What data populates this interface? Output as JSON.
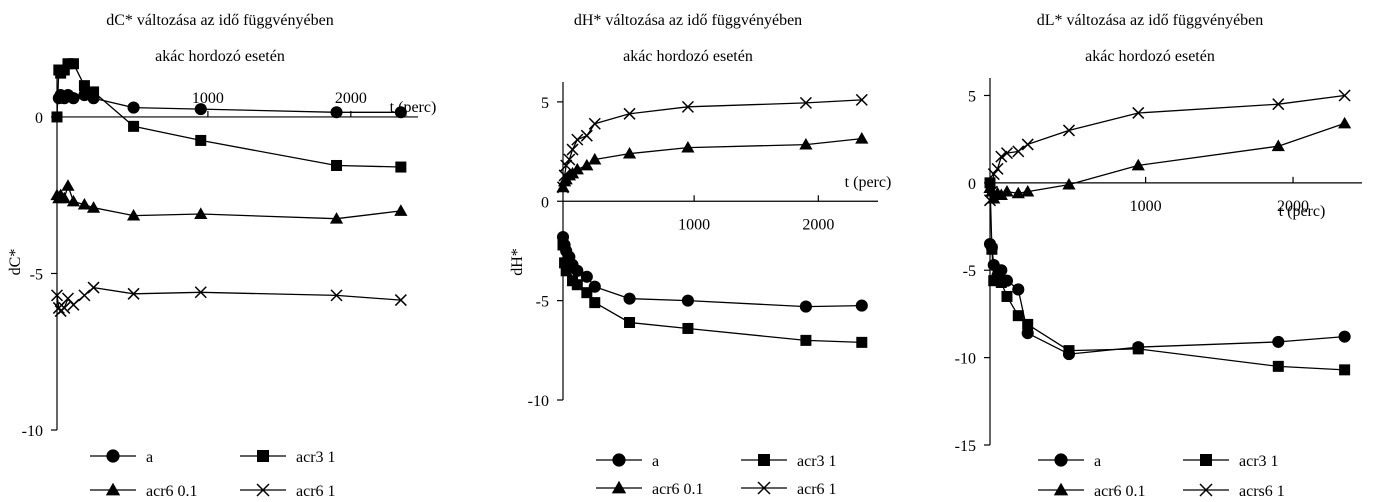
{
  "chart_data": [
    {
      "type": "line",
      "title": "dC* változása az idő függvényében",
      "subtitle": "akác hordozó esetén",
      "xlabel": "t (perc)",
      "ylabel": "dC*",
      "xlim": [
        0,
        2400
      ],
      "ylim": [
        -10,
        1.5
      ],
      "x_ticks": [
        1000,
        2000
      ],
      "y_ticks": [
        0,
        -5,
        -10
      ],
      "legend_position": "bottom",
      "series": [
        {
          "name": "a",
          "marker": "circle",
          "x": [
            10,
            20,
            40,
            60,
            90,
            150,
            200,
            480,
            950,
            1900,
            2350
          ],
          "y": [
            0.6,
            0.7,
            0.6,
            0.7,
            0.6,
            0.7,
            0.6,
            0.3,
            0.25,
            0.15,
            0.15
          ]
        },
        {
          "name": "acr3 1",
          "marker": "square",
          "x": [
            0,
            10,
            20,
            40,
            60,
            90,
            150,
            200,
            480,
            950,
            1900,
            2350
          ],
          "y": [
            0,
            1.5,
            1.4,
            1.5,
            1.7,
            1.7,
            1.0,
            0.8,
            -0.3,
            -0.75,
            -1.55,
            -1.6
          ]
        },
        {
          "name": "acr6 0.1",
          "marker": "triangle",
          "x": [
            0,
            10,
            20,
            40,
            60,
            90,
            150,
            200,
            480,
            950,
            1900,
            2350
          ],
          "y": [
            -2.5,
            -2.6,
            -2.5,
            -2.6,
            -2.2,
            -2.7,
            -2.8,
            -2.9,
            -3.15,
            -3.1,
            -3.25,
            -3.0
          ]
        },
        {
          "name": "acr6 1",
          "marker": "x",
          "x": [
            0,
            10,
            20,
            40,
            60,
            90,
            150,
            200,
            480,
            950,
            1900,
            2350
          ],
          "y": [
            -5.7,
            -6.1,
            -6.2,
            -6.1,
            -5.8,
            -6.0,
            -5.7,
            -5.45,
            -5.65,
            -5.6,
            -5.7,
            -5.85
          ]
        }
      ]
    },
    {
      "type": "line",
      "title": "dH* változása az idő függvényében",
      "subtitle": "akác hordozó esetén",
      "xlabel": "t (perc)",
      "ylabel": "dH*",
      "xlim": [
        0,
        2400
      ],
      "ylim": [
        -10,
        6
      ],
      "x_ticks": [
        1000,
        2000
      ],
      "y_ticks": [
        5,
        0,
        -5,
        -10
      ],
      "legend_position": "bottom",
      "series": [
        {
          "name": "a",
          "marker": "circle",
          "x": [
            0,
            10,
            20,
            40,
            60,
            90,
            150,
            200,
            480,
            950,
            1900,
            2350
          ],
          "y": [
            -1.8,
            -2.2,
            -2.5,
            -2.8,
            -3.2,
            -3.5,
            -3.8,
            -4.3,
            -4.9,
            -5.0,
            -5.3,
            -5.25
          ]
        },
        {
          "name": "acr3 1",
          "marker": "square",
          "x": [
            0,
            10,
            20,
            40,
            60,
            90,
            150,
            200,
            480,
            950,
            1900,
            2350
          ],
          "y": [
            -2.2,
            -3.1,
            -3.5,
            -3.3,
            -4.0,
            -4.2,
            -4.6,
            -5.1,
            -6.1,
            -6.4,
            -7.0,
            -7.1
          ]
        },
        {
          "name": "acr6 0.1",
          "marker": "triangle",
          "x": [
            0,
            10,
            20,
            40,
            60,
            90,
            150,
            200,
            480,
            950,
            1900,
            2350
          ],
          "y": [
            0.7,
            1.0,
            1.1,
            1.3,
            1.4,
            1.6,
            1.8,
            2.1,
            2.4,
            2.7,
            2.85,
            3.15
          ]
        },
        {
          "name": "acr6 1",
          "marker": "x",
          "x": [
            0,
            10,
            20,
            40,
            60,
            90,
            150,
            200,
            480,
            950,
            1900,
            2350
          ],
          "y": [
            0.7,
            1.3,
            1.8,
            2.1,
            2.6,
            3.1,
            3.3,
            3.9,
            4.4,
            4.75,
            4.95,
            5.1
          ]
        }
      ]
    },
    {
      "type": "line",
      "title": "dL* változása az idő függvényében",
      "subtitle": "akác hordozó esetén",
      "xlabel": "t (perc)",
      "ylabel": "",
      "xlim": [
        0,
        2400
      ],
      "ylim": [
        -15,
        6
      ],
      "x_ticks": [
        1000,
        2000
      ],
      "y_ticks": [
        5,
        0,
        -5,
        -10,
        -15
      ],
      "legend_position": "bottom",
      "series": [
        {
          "name": "a",
          "marker": "circle",
          "x": [
            0,
            10,
            20,
            40,
            60,
            90,
            150,
            200,
            480,
            950,
            1900,
            2350
          ],
          "y": [
            -3.5,
            -3.7,
            -4.7,
            -5.3,
            -5.0,
            -5.6,
            -6.1,
            -8.6,
            -9.8,
            -9.4,
            -9.1,
            -8.8
          ]
        },
        {
          "name": "acr3 1",
          "marker": "square",
          "x": [
            0,
            10,
            20,
            40,
            60,
            90,
            150,
            200,
            480,
            950,
            1900,
            2350
          ],
          "y": [
            0,
            -3.8,
            -5.6,
            -5.5,
            -5.7,
            -6.5,
            -7.6,
            -8.1,
            -9.6,
            -9.5,
            -10.5,
            -10.7
          ]
        },
        {
          "name": "acr6 0.1",
          "marker": "triangle",
          "x": [
            0,
            10,
            20,
            40,
            60,
            90,
            150,
            200,
            480,
            950,
            1900,
            2350
          ],
          "y": [
            -0.3,
            -0.5,
            -0.9,
            -0.6,
            -0.7,
            -0.5,
            -0.6,
            -0.5,
            -0.1,
            1.0,
            2.1,
            3.4
          ]
        },
        {
          "name": "acrs6 1",
          "marker": "x",
          "x": [
            0,
            10,
            20,
            40,
            60,
            90,
            150,
            200,
            480,
            950,
            1900,
            2350
          ],
          "y": [
            -1.0,
            -0.5,
            0.5,
            0.8,
            1.5,
            1.7,
            1.8,
            2.2,
            3.0,
            4.0,
            4.5,
            5.0
          ]
        }
      ]
    }
  ]
}
